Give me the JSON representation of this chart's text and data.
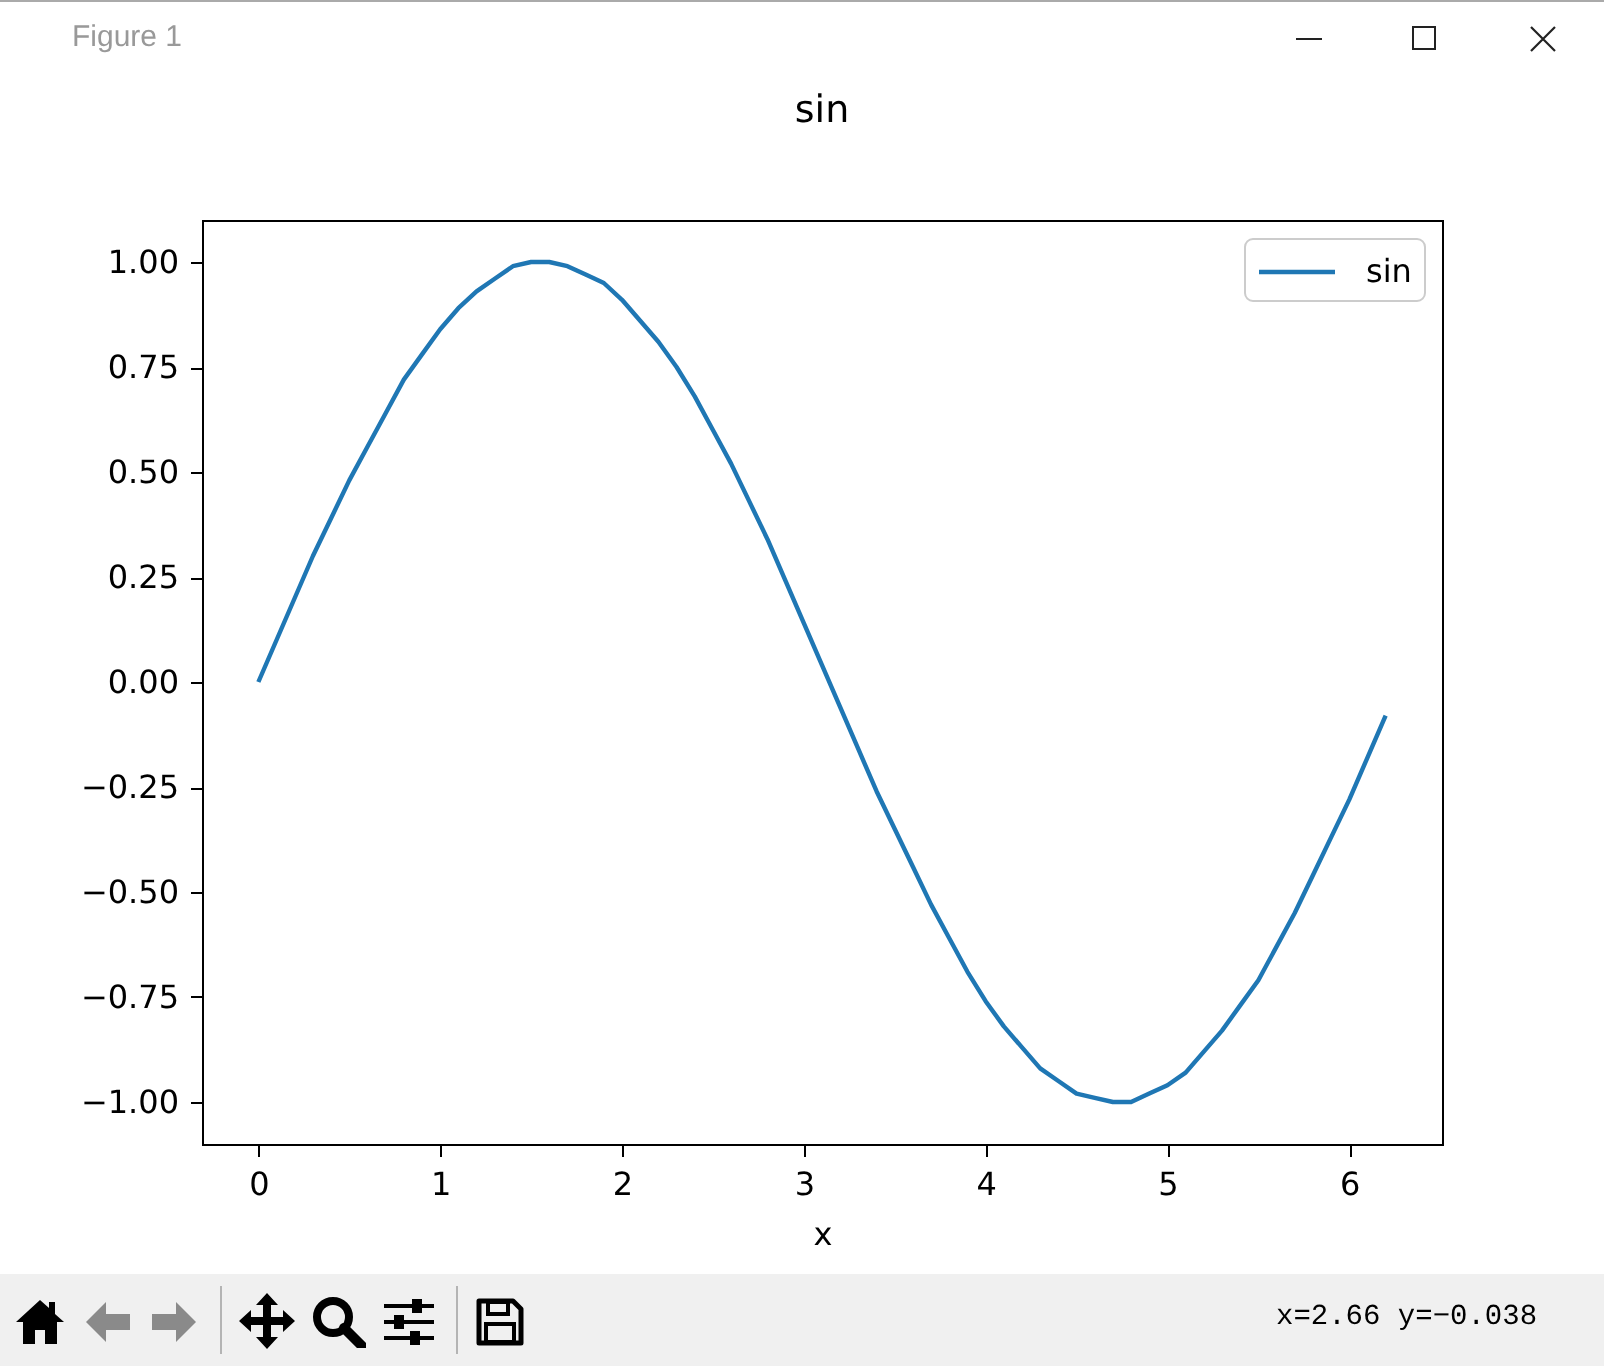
{
  "chart_data": {
    "type": "line",
    "title": "sin",
    "xlabel": "x",
    "legend": "top right",
    "x": [
      0,
      0.1,
      0.2,
      0.3,
      0.4,
      0.5,
      0.6,
      0.7,
      0.8,
      0.9,
      1.0,
      1.1,
      1.2,
      1.3,
      1.4,
      1.5,
      1.6,
      1.7,
      1.8,
      1.9,
      2.0,
      2.1,
      2.2,
      2.3,
      2.4,
      2.5,
      2.6,
      2.7,
      2.8,
      2.9,
      3.0,
      3.1,
      3.2,
      3.3,
      3.4,
      3.5,
      3.6,
      3.7,
      3.8,
      3.9,
      4.0,
      4.1,
      4.2,
      4.3,
      4.4,
      4.5,
      4.6,
      4.7,
      4.8,
      4.9,
      5.0,
      5.1,
      5.2,
      5.3,
      5.4,
      5.5,
      5.6,
      5.7,
      5.8,
      5.9,
      6.0,
      6.1,
      6.2
    ],
    "series": [
      {
        "name": "sin",
        "color": "#1f77b4",
        "values": [
          0,
          0.1,
          0.2,
          0.3,
          0.39,
          0.48,
          0.56,
          0.64,
          0.72,
          0.78,
          0.84,
          0.89,
          0.93,
          0.96,
          0.99,
          1.0,
          1.0,
          0.99,
          0.97,
          0.95,
          0.91,
          0.86,
          0.81,
          0.75,
          0.68,
          0.6,
          0.52,
          0.43,
          0.34,
          0.24,
          0.14,
          0.04,
          -0.06,
          -0.16,
          -0.26,
          -0.35,
          -0.44,
          -0.53,
          -0.61,
          -0.69,
          -0.76,
          -0.82,
          -0.87,
          -0.92,
          -0.95,
          -0.98,
          -0.99,
          -1.0,
          -1.0,
          -0.98,
          -0.96,
          -0.93,
          -0.88,
          -0.83,
          -0.77,
          -0.71,
          -0.63,
          -0.55,
          -0.46,
          -0.37,
          -0.28,
          -0.18,
          -0.08
        ]
      }
    ],
    "xlim": [
      -0.31,
      6.51
    ],
    "ylim": [
      -1.1,
      1.1
    ],
    "xticks": [
      0,
      1,
      2,
      3,
      4,
      5,
      6
    ],
    "yticks": [
      {
        "value": -1,
        "label": "−1.00"
      },
      {
        "value": -0.75,
        "label": "−0.75"
      },
      {
        "value": -0.5,
        "label": "−0.50"
      },
      {
        "value": -0.25,
        "label": "−0.25"
      },
      {
        "value": 0,
        "label": "0.00"
      },
      {
        "value": 0.25,
        "label": "0.25"
      },
      {
        "value": 0.5,
        "label": "0.50"
      },
      {
        "value": 0.75,
        "label": "0.75"
      },
      {
        "value": 1,
        "label": "1.00"
      }
    ],
    "annotations": [
      "Figure 1",
      "x=2.66 y=−0.038"
    ]
  }
}
